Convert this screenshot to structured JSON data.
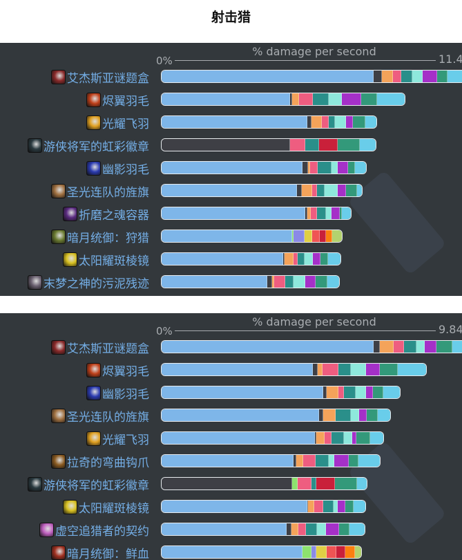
{
  "page_title": "射击猎",
  "colors": {
    "base": "#7eb6e9",
    "dark": "#3e3f45",
    "orange": "#f4a35a",
    "pink": "#ee5d80",
    "teal": "#2a8f8a",
    "mint": "#8ee8dc",
    "purple": "#a530c8",
    "green": "#33997a",
    "cyan": "#69cdea",
    "red": "#c9203a",
    "lime": "#8de26e",
    "lavender": "#8a8ae6",
    "yellow": "#e0cf45",
    "salmon": "#ef5454",
    "fire": "#fb7f0f",
    "olive": "#b3d26e",
    "label": "#74aee6",
    "panel": "#33383c"
  },
  "chart_data": [
    {
      "type": "bar",
      "orientation": "horizontal",
      "stacked": true,
      "title": "% damage per second",
      "axis_min_label": "0%",
      "axis_max_label": "11.4",
      "xlim": [
        0,
        11.4
      ],
      "categories": [
        {
          "label": "艾杰斯亚谜题盒",
          "icon": "puzzle-box-icon",
          "icon_color": "#8a2a2a",
          "segments": [
            [
              "base",
              7.83
            ],
            [
              "dark",
              0.31
            ],
            [
              "orange",
              0.41
            ],
            [
              "pink",
              0.31
            ],
            [
              "teal",
              0.41
            ],
            [
              "mint",
              0.38
            ],
            [
              "purple",
              0.54
            ],
            [
              "green",
              0.38
            ],
            [
              "cyan",
              0.84
            ]
          ]
        },
        {
          "label": "烬翼羽毛",
          "icon": "ember-feather-icon",
          "icon_color": "#c0401a",
          "segments": [
            [
              "base",
              4.74
            ],
            [
              "dark",
              0.08
            ],
            [
              "orange",
              0.26
            ],
            [
              "pink",
              0.51
            ],
            [
              "teal",
              0.59
            ],
            [
              "mint",
              0.48
            ],
            [
              "purple",
              0.71
            ],
            [
              "green",
              0.59
            ],
            [
              "cyan",
              1.07
            ]
          ]
        },
        {
          "label": "光耀飞羽",
          "icon": "radiant-feather-icon",
          "icon_color": "#e0a020",
          "segments": [
            [
              "base",
              5.38
            ],
            [
              "dark",
              0.15
            ],
            [
              "orange",
              0.38
            ],
            [
              "pink",
              0.26
            ],
            [
              "teal",
              0.23
            ],
            [
              "mint",
              0.41
            ],
            [
              "purple",
              0.26
            ],
            [
              "green",
              0.46
            ],
            [
              "cyan",
              0.46
            ]
          ]
        },
        {
          "label": "游侠将军的虹彩徽章",
          "icon": "ranger-insignia-icon",
          "icon_color": "#2a3a40",
          "segments": [
            [
              "dark",
              4.74
            ],
            [
              "pink",
              0.56
            ],
            [
              "teal",
              0.51
            ],
            [
              "red",
              0.69
            ],
            [
              "green",
              0.82
            ],
            [
              "cyan",
              0.64
            ]
          ]
        },
        {
          "label": "幽影羽毛",
          "icon": "shadow-feather-icon",
          "icon_color": "#2a3ab0",
          "segments": [
            [
              "base",
              5.2
            ],
            [
              "dark",
              0.2
            ],
            [
              "orange",
              0.08
            ],
            [
              "pink",
              0.28
            ],
            [
              "teal",
              0.51
            ],
            [
              "mint",
              0.23
            ],
            [
              "purple",
              0.38
            ],
            [
              "green",
              0.26
            ],
            [
              "cyan",
              0.46
            ]
          ]
        },
        {
          "label": "圣光连队的旌旗",
          "icon": "banner-icon",
          "icon_color": "#a07040",
          "segments": [
            [
              "base",
              5.0
            ],
            [
              "dark",
              0.18
            ],
            [
              "orange",
              0.38
            ],
            [
              "pink",
              0.18
            ],
            [
              "teal",
              0.28
            ],
            [
              "mint",
              0.48
            ],
            [
              "purple",
              0.31
            ],
            [
              "green",
              0.41
            ],
            [
              "cyan",
              0.23
            ]
          ]
        },
        {
          "label": "折磨之魂容器",
          "icon": "soul-vessel-icon",
          "icon_color": "#5a2a80",
          "segments": [
            [
              "base",
              5.31
            ],
            [
              "dark",
              0.08
            ],
            [
              "orange",
              0.13
            ],
            [
              "pink",
              0.23
            ],
            [
              "teal",
              0.33
            ],
            [
              "mint",
              0.2
            ],
            [
              "purple",
              0.31
            ],
            [
              "green",
              0.08
            ],
            [
              "cyan",
              0.36
            ]
          ]
        },
        {
          "label": "暗月统御：狩猎",
          "icon": "darkmoon-card-icon",
          "icon_color": "#6a7a30",
          "segments": [
            [
              "base",
              4.82
            ],
            [
              "lime",
              0.05
            ],
            [
              "lavender",
              0.41
            ],
            [
              "yellow",
              0.28
            ],
            [
              "salmon",
              0.28
            ],
            [
              "red",
              0.23
            ],
            [
              "fire",
              0.23
            ],
            [
              "olive",
              0.41
            ]
          ]
        },
        {
          "label": "太阳耀斑棱镜",
          "icon": "sunflare-prism-icon",
          "icon_color": "#d8c020",
          "segments": [
            [
              "base",
              4.49
            ],
            [
              "dark",
              0.05
            ],
            [
              "orange",
              0.33
            ],
            [
              "pink",
              0.15
            ],
            [
              "teal",
              0.26
            ],
            [
              "mint",
              0.31
            ],
            [
              "purple",
              0.28
            ],
            [
              "green",
              0.28
            ],
            [
              "cyan",
              0.51
            ]
          ]
        },
        {
          "label": "末梦之神的污泥残迹",
          "icon": "sludge-remnant-icon",
          "icon_color": "#6a6070",
          "segments": [
            [
              "base",
              3.9
            ],
            [
              "dark",
              0.18
            ],
            [
              "orange",
              0.08
            ],
            [
              "pink",
              0.41
            ],
            [
              "teal",
              0.31
            ],
            [
              "mint",
              0.43
            ],
            [
              "purple",
              0.38
            ],
            [
              "green",
              0.43
            ],
            [
              "cyan",
              0.48
            ]
          ]
        }
      ]
    },
    {
      "type": "bar",
      "orientation": "horizontal",
      "stacked": true,
      "title": "% damage per second",
      "axis_min_label": "0%",
      "axis_max_label": "9.84",
      "xlim": [
        0,
        9.84
      ],
      "categories": [
        {
          "label": "艾杰斯亚谜题盒",
          "icon": "puzzle-box-icon",
          "icon_color": "#8a2a2a",
          "segments": [
            [
              "base",
              6.76
            ],
            [
              "dark",
              0.2
            ],
            [
              "orange",
              0.44
            ],
            [
              "pink",
              0.33
            ],
            [
              "teal",
              0.4
            ],
            [
              "mint",
              0.26
            ],
            [
              "purple",
              0.37
            ],
            [
              "green",
              0.51
            ],
            [
              "cyan",
              0.57
            ]
          ]
        },
        {
          "label": "烬翼羽毛",
          "icon": "ember-feather-icon",
          "icon_color": "#c0401a",
          "segments": [
            [
              "base",
              4.82
            ],
            [
              "dark",
              0.15
            ],
            [
              "orange",
              0.15
            ],
            [
              "pink",
              0.51
            ],
            [
              "teal",
              0.4
            ],
            [
              "mint",
              0.48
            ],
            [
              "purple",
              0.44
            ],
            [
              "green",
              0.57
            ],
            [
              "cyan",
              0.95
            ]
          ]
        },
        {
          "label": "幽影羽毛",
          "icon": "shadow-feather-icon",
          "icon_color": "#2a3ab0",
          "segments": [
            [
              "base",
              5.15
            ],
            [
              "dark",
              0.11
            ],
            [
              "orange",
              0.37
            ],
            [
              "pink",
              0.18
            ],
            [
              "teal",
              0.37
            ],
            [
              "mint",
              0.33
            ],
            [
              "purple",
              0.22
            ],
            [
              "green",
              0.33
            ],
            [
              "cyan",
              0.57
            ]
          ]
        },
        {
          "label": "圣光连队的旌旗",
          "icon": "banner-icon",
          "icon_color": "#a07040",
          "segments": [
            [
              "base",
              5.02
            ],
            [
              "dark",
              0.13
            ],
            [
              "orange",
              0.4
            ],
            [
              "teal",
              0.48
            ],
            [
              "mint",
              0.26
            ],
            [
              "purple",
              0.26
            ],
            [
              "green",
              0.35
            ],
            [
              "cyan",
              0.44
            ]
          ]
        },
        {
          "label": "光耀飞羽",
          "icon": "radiant-feather-icon",
          "icon_color": "#e0a020",
          "segments": [
            [
              "base",
              4.89
            ],
            [
              "dark",
              0.04
            ],
            [
              "orange",
              0.26
            ],
            [
              "pink",
              0.22
            ],
            [
              "teal",
              0.4
            ],
            [
              "mint",
              0.26
            ],
            [
              "purple",
              0.15
            ],
            [
              "green",
              0.44
            ],
            [
              "cyan",
              0.46
            ]
          ]
        },
        {
          "label": "拉奇的弯曲钩爪",
          "icon": "curved-talon-icon",
          "icon_color": "#8a5a20",
          "segments": [
            [
              "base",
              4.21
            ],
            [
              "dark",
              0.09
            ],
            [
              "orange",
              0.22
            ],
            [
              "pink",
              0.4
            ],
            [
              "teal",
              0.4
            ],
            [
              "mint",
              0.18
            ],
            [
              "purple",
              0.46
            ],
            [
              "green",
              0.31
            ],
            [
              "cyan",
              0.73
            ]
          ]
        },
        {
          "label": "游侠将军的虹彩徽章",
          "icon": "ranger-insignia-icon",
          "icon_color": "#2a3a40",
          "segments": [
            [
              "dark",
              4.16
            ],
            [
              "lime",
              0.18
            ],
            [
              "pink",
              0.44
            ],
            [
              "teal",
              0.15
            ],
            [
              "red",
              0.59
            ],
            [
              "green",
              0.7
            ],
            [
              "cyan",
              0.37
            ]
          ]
        },
        {
          "label": "太阳耀斑棱镜",
          "icon": "sunflare-prism-icon",
          "icon_color": "#d8c020",
          "segments": [
            [
              "base",
              4.65
            ],
            [
              "dark",
              0.02
            ],
            [
              "orange",
              0.2
            ],
            [
              "pink",
              0.29
            ],
            [
              "teal",
              0.31
            ],
            [
              "mint",
              0.15
            ],
            [
              "purple",
              0.24
            ],
            [
              "green",
              0.26
            ],
            [
              "cyan",
              0.42
            ]
          ]
        },
        {
          "label": "虚空追猎者的契约",
          "icon": "voidstalker-contract-icon",
          "icon_color": "#c060c0",
          "segments": [
            [
              "base",
              3.99
            ],
            [
              "dark",
              0.15
            ],
            [
              "orange",
              0.22
            ],
            [
              "pink",
              0.24
            ],
            [
              "teal",
              0.35
            ],
            [
              "mint",
              0.29
            ],
            [
              "purple",
              0.42
            ],
            [
              "green",
              0.33
            ],
            [
              "cyan",
              0.53
            ]
          ]
        },
        {
          "label": "暗月统御：鲜血",
          "icon": "darkmoon-card-icon",
          "icon_color": "#a03020",
          "segments": [
            [
              "base",
              4.49
            ],
            [
              "lime",
              0.29
            ],
            [
              "lavender",
              0.15
            ],
            [
              "yellow",
              0.33
            ],
            [
              "salmon",
              0.31
            ],
            [
              "red",
              0.29
            ],
            [
              "fire",
              0.31
            ],
            [
              "olive",
              0.24
            ]
          ]
        }
      ]
    }
  ]
}
